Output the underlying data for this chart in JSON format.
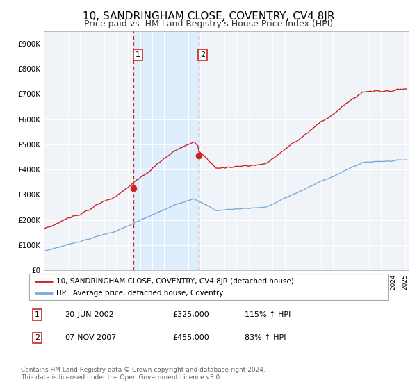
{
  "title": "10, SANDRINGHAM CLOSE, COVENTRY, CV4 8JR",
  "subtitle": "Price paid vs. HM Land Registry's House Price Index (HPI)",
  "title_fontsize": 11,
  "subtitle_fontsize": 9,
  "ylim": [
    0,
    950000
  ],
  "yticks": [
    0,
    100000,
    200000,
    300000,
    400000,
    500000,
    600000,
    700000,
    800000,
    900000
  ],
  "ytick_labels": [
    "£0",
    "£100K",
    "£200K",
    "£300K",
    "£400K",
    "£500K",
    "£600K",
    "£700K",
    "£800K",
    "£900K"
  ],
  "hpi_color": "#7aaadd",
  "price_color": "#cc2222",
  "marker_color": "#cc2222",
  "shade_color": "#ddeeff",
  "dashed_color": "#cc2222",
  "sale1_date": 2002.46,
  "sale2_date": 2007.85,
  "sale1_price": 325000,
  "sale2_price": 455000,
  "legend_label1": "10, SANDRINGHAM CLOSE, COVENTRY, CV4 8JR (detached house)",
  "legend_label2": "HPI: Average price, detached house, Coventry",
  "table_row1": [
    "1",
    "20-JUN-2002",
    "£325,000",
    "115% ↑ HPI"
  ],
  "table_row2": [
    "2",
    "07-NOV-2007",
    "£455,000",
    "83% ↑ HPI"
  ],
  "footer1": "Contains HM Land Registry data © Crown copyright and database right 2024.",
  "footer2": "This data is licensed under the Open Government Licence v3.0.",
  "background_color": "#ffffff",
  "plot_bg_color": "#f0f4f8"
}
